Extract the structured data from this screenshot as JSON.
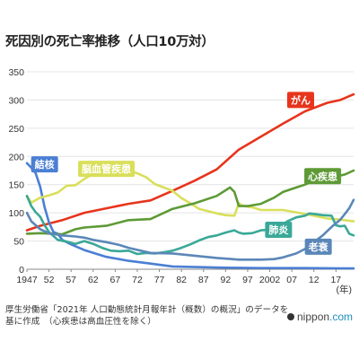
{
  "chart_data": {
    "type": "line",
    "title": "死因別の死亡率推移（人口10万対）",
    "xlabel": "",
    "ylabel": "",
    "unit_label": "(年)",
    "xlim": [
      1947,
      2021
    ],
    "ylim": [
      0,
      350
    ],
    "y_ticks": [
      0,
      50,
      100,
      150,
      200,
      250,
      300,
      350
    ],
    "x_ticks": [
      {
        "year": 1947,
        "label": "1947"
      },
      {
        "year": 1952,
        "label": "52"
      },
      {
        "year": 1957,
        "label": "57"
      },
      {
        "year": 1962,
        "label": "62"
      },
      {
        "year": 1967,
        "label": "67"
      },
      {
        "year": 1972,
        "label": "72"
      },
      {
        "year": 1977,
        "label": "77"
      },
      {
        "year": 1982,
        "label": "82"
      },
      {
        "year": 1987,
        "label": "87"
      },
      {
        "year": 1992,
        "label": "92"
      },
      {
        "year": 1997,
        "label": "97"
      },
      {
        "year": 2002,
        "label": "2002"
      },
      {
        "year": 2007,
        "label": "07"
      },
      {
        "year": 2012,
        "label": "12"
      },
      {
        "year": 2017,
        "label": "17"
      }
    ],
    "grid": true,
    "legend": "inline labels",
    "series": [
      {
        "name": "がん",
        "color": "#e8341c",
        "label_at": [
          2009,
          300
        ],
        "points": [
          [
            1947,
            69
          ],
          [
            1950,
            77
          ],
          [
            1955,
            87
          ],
          [
            1960,
            100
          ],
          [
            1965,
            108
          ],
          [
            1970,
            116
          ],
          [
            1975,
            122
          ],
          [
            1980,
            139
          ],
          [
            1985,
            157
          ],
          [
            1990,
            177
          ],
          [
            1995,
            212
          ],
          [
            2000,
            235
          ],
          [
            2005,
            258
          ],
          [
            2010,
            280
          ],
          [
            2015,
            295
          ],
          [
            2018,
            300
          ],
          [
            2021,
            310
          ]
        ]
      },
      {
        "name": "結核",
        "color": "#4a7fd4",
        "label_at": [
          1951,
          186
        ],
        "points": [
          [
            1947,
            188
          ],
          [
            1948,
            180
          ],
          [
            1949,
            170
          ],
          [
            1950,
            146
          ],
          [
            1951,
            110
          ],
          [
            1952,
            83
          ],
          [
            1953,
            66
          ],
          [
            1954,
            63
          ],
          [
            1955,
            52
          ],
          [
            1957,
            44
          ],
          [
            1960,
            34
          ],
          [
            1965,
            22
          ],
          [
            1970,
            15
          ],
          [
            1975,
            10
          ],
          [
            1980,
            5
          ],
          [
            1990,
            3
          ],
          [
            2000,
            2
          ],
          [
            2010,
            2
          ],
          [
            2021,
            1.5
          ]
        ]
      },
      {
        "name": "脳血管疾患",
        "color": "#d9df5a",
        "label_at": [
          1965,
          178
        ],
        "points": [
          [
            1947,
            130
          ],
          [
            1948,
            118
          ],
          [
            1950,
            127
          ],
          [
            1952,
            131
          ],
          [
            1954,
            136
          ],
          [
            1956,
            148
          ],
          [
            1958,
            149
          ],
          [
            1960,
            160
          ],
          [
            1962,
            169
          ],
          [
            1964,
            171
          ],
          [
            1966,
            173
          ],
          [
            1968,
            174
          ],
          [
            1970,
            175
          ],
          [
            1972,
            170
          ],
          [
            1974,
            163
          ],
          [
            1976,
            151
          ],
          [
            1978,
            145
          ],
          [
            1980,
            139
          ],
          [
            1982,
            126
          ],
          [
            1984,
            117
          ],
          [
            1986,
            107
          ],
          [
            1988,
            103
          ],
          [
            1990,
            99
          ],
          [
            1992,
            96
          ],
          [
            1994,
            95
          ],
          [
            1995,
            117
          ],
          [
            1996,
            112
          ],
          [
            1998,
            110
          ],
          [
            2000,
            105
          ],
          [
            2005,
            105
          ],
          [
            2010,
            98
          ],
          [
            2015,
            90
          ],
          [
            2018,
            88
          ],
          [
            2021,
            85
          ]
        ]
      },
      {
        "name": "心疾患",
        "color": "#5e9a36",
        "label_at": [
          2014,
          165
        ],
        "points": [
          [
            1947,
            63
          ],
          [
            1950,
            64
          ],
          [
            1955,
            62
          ],
          [
            1958,
            71
          ],
          [
            1960,
            74
          ],
          [
            1965,
            77
          ],
          [
            1970,
            87
          ],
          [
            1975,
            89
          ],
          [
            1980,
            107
          ],
          [
            1985,
            117
          ],
          [
            1990,
            130
          ],
          [
            1993,
            145
          ],
          [
            1994,
            137
          ],
          [
            1995,
            112
          ],
          [
            1997,
            112
          ],
          [
            2000,
            116
          ],
          [
            2003,
            127
          ],
          [
            2005,
            137
          ],
          [
            2008,
            145
          ],
          [
            2010,
            150
          ],
          [
            2012,
            157
          ],
          [
            2015,
            156
          ],
          [
            2017,
            164
          ],
          [
            2019,
            168
          ],
          [
            2021,
            175
          ]
        ]
      },
      {
        "name": "肺炎",
        "color": "#3aa898",
        "label_at": [
          2004,
          70
        ],
        "points": [
          [
            1947,
            130
          ],
          [
            1948,
            112
          ],
          [
            1949,
            101
          ],
          [
            1950,
            93
          ],
          [
            1951,
            78
          ],
          [
            1952,
            66
          ],
          [
            1954,
            52
          ],
          [
            1956,
            49
          ],
          [
            1958,
            45
          ],
          [
            1960,
            50
          ],
          [
            1962,
            45
          ],
          [
            1964,
            38
          ],
          [
            1966,
            33
          ],
          [
            1968,
            32
          ],
          [
            1970,
            33
          ],
          [
            1972,
            27
          ],
          [
            1974,
            29
          ],
          [
            1976,
            28
          ],
          [
            1978,
            30
          ],
          [
            1980,
            33
          ],
          [
            1982,
            38
          ],
          [
            1984,
            44
          ],
          [
            1986,
            51
          ],
          [
            1988,
            57
          ],
          [
            1990,
            60
          ],
          [
            1992,
            65
          ],
          [
            1994,
            69
          ],
          [
            1995,
            65
          ],
          [
            1996,
            63
          ],
          [
            1998,
            64
          ],
          [
            2000,
            69
          ],
          [
            2002,
            70
          ],
          [
            2004,
            75
          ],
          [
            2006,
            85
          ],
          [
            2008,
            92
          ],
          [
            2010,
            95
          ],
          [
            2011,
            99
          ],
          [
            2012,
            98
          ],
          [
            2014,
            96
          ],
          [
            2016,
            95
          ],
          [
            2017,
            78
          ],
          [
            2018,
            76
          ],
          [
            2019,
            77
          ],
          [
            2020,
            63
          ],
          [
            2021,
            60
          ]
        ]
      },
      {
        "name": "老衰",
        "color": "#5b87b8",
        "label_at": [
          2013,
          40
        ],
        "points": [
          [
            1947,
            100
          ],
          [
            1948,
            85
          ],
          [
            1950,
            71
          ],
          [
            1952,
            64
          ],
          [
            1955,
            60
          ],
          [
            1958,
            58
          ],
          [
            1960,
            56
          ],
          [
            1962,
            52
          ],
          [
            1965,
            48
          ],
          [
            1968,
            43
          ],
          [
            1970,
            38
          ],
          [
            1975,
            29
          ],
          [
            1980,
            28
          ],
          [
            1985,
            24
          ],
          [
            1990,
            20
          ],
          [
            1995,
            17
          ],
          [
            2000,
            17
          ],
          [
            2003,
            18
          ],
          [
            2005,
            21
          ],
          [
            2008,
            28
          ],
          [
            2010,
            36
          ],
          [
            2012,
            48
          ],
          [
            2014,
            60
          ],
          [
            2016,
            75
          ],
          [
            2018,
            88
          ],
          [
            2019,
            98
          ],
          [
            2020,
            108
          ],
          [
            2021,
            123
          ]
        ]
      }
    ]
  },
  "footer": {
    "source_line1": "厚生労働省「2021年 人口動態統計月報年計（概数）の概況」のデータを",
    "source_line2": "基に作成　（心疾患は高血圧性を除く）",
    "brand_name": "nippon",
    "brand_domain": ".com"
  }
}
